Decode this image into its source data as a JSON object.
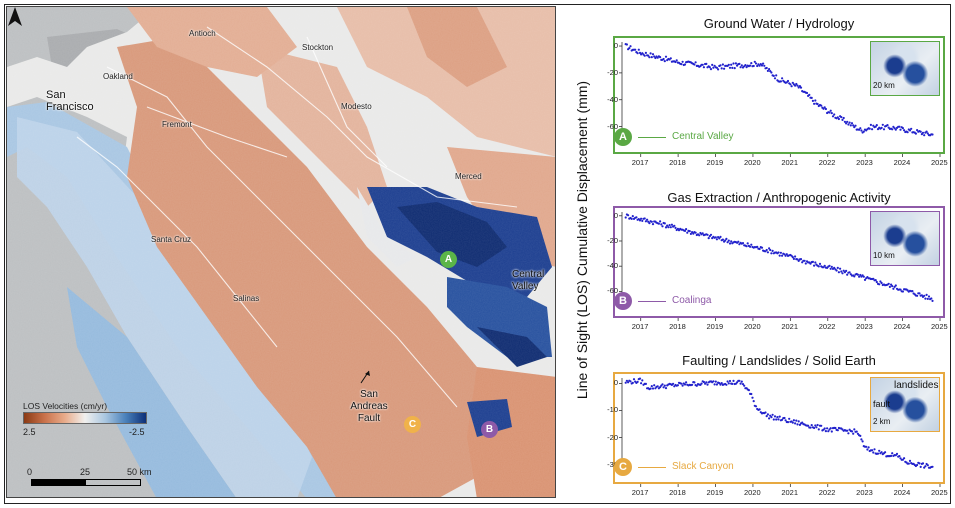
{
  "map": {
    "cities": [
      {
        "name": "Antioch",
        "cls": "city"
      },
      {
        "name": "Stockton",
        "cls": "city"
      },
      {
        "name": "Oakland",
        "cls": "city"
      },
      {
        "name": "San Francisco",
        "cls": "bigcity"
      },
      {
        "name": "Fremont",
        "cls": "city"
      },
      {
        "name": "Modesto",
        "cls": "city"
      },
      {
        "name": "Merced",
        "cls": "city"
      },
      {
        "name": "Santa Cruz",
        "cls": "city"
      },
      {
        "name": "Salinas",
        "cls": "city"
      }
    ],
    "region_label": "Central Valley",
    "fault_label": "San Andreas Fault",
    "legend": {
      "title": "LOS Velocities (cm/yr)",
      "min_label": "2.5",
      "max_label": "-2.5"
    },
    "scale": {
      "zero": "0",
      "mid": "25",
      "end": "50 km"
    },
    "markers": [
      {
        "letter": "A",
        "color": "#5bb548"
      },
      {
        "letter": "B",
        "color": "#8e5aa8"
      },
      {
        "letter": "C",
        "color": "#f0b24a"
      }
    ],
    "colors": {
      "uplift": "#d99271",
      "subsidence": "#173c8f",
      "ocean": "#bfc2c4",
      "coast": "#a9c8e3"
    }
  },
  "shared_ylabel": "Line of Sight (LOS) Cumulative Displacement (mm)",
  "chart_data": [
    {
      "type": "scatter",
      "title": "Ground Water / Hydrology",
      "site_letter": "A",
      "site_label": "Central Valley",
      "color": "#5aa844",
      "point_color": "#2222cc",
      "inset_scale": "20 km",
      "xlim": [
        2016.5,
        2025
      ],
      "ylim": [
        -70,
        3
      ],
      "xticks": [
        2017,
        2018,
        2019,
        2020,
        2021,
        2022,
        2023,
        2024,
        2025
      ],
      "yticks": [
        0,
        -20,
        -40,
        -60
      ],
      "anchors": [
        [
          2016.6,
          0
        ],
        [
          2017.0,
          -5
        ],
        [
          2018.0,
          -12
        ],
        [
          2019.0,
          -16
        ],
        [
          2019.8,
          -14
        ],
        [
          2020.2,
          -13
        ],
        [
          2020.7,
          -25
        ],
        [
          2021.2,
          -30
        ],
        [
          2021.7,
          -43
        ],
        [
          2022.2,
          -52
        ],
        [
          2022.6,
          -58
        ],
        [
          2022.9,
          -63
        ],
        [
          2023.2,
          -60
        ],
        [
          2023.8,
          -61
        ],
        [
          2024.2,
          -63
        ],
        [
          2024.8,
          -66
        ]
      ]
    },
    {
      "type": "scatter",
      "title": "Gas Extraction / Anthropogenic Activity",
      "site_letter": "B",
      "site_label": "Coalinga",
      "color": "#8e5aa8",
      "point_color": "#2222cc",
      "inset_scale": "10 km",
      "xlim": [
        2016.5,
        2025
      ],
      "ylim": [
        -70,
        3
      ],
      "xticks": [
        2017,
        2018,
        2019,
        2020,
        2021,
        2022,
        2023,
        2024,
        2025
      ],
      "yticks": [
        0,
        -20,
        -40,
        -60
      ],
      "anchors": [
        [
          2016.6,
          0
        ],
        [
          2017.5,
          -6
        ],
        [
          2018.5,
          -14
        ],
        [
          2019.5,
          -21
        ],
        [
          2020.5,
          -28
        ],
        [
          2021.5,
          -37
        ],
        [
          2022.5,
          -45
        ],
        [
          2023.5,
          -54
        ],
        [
          2024.5,
          -63
        ],
        [
          2024.8,
          -66
        ]
      ]
    },
    {
      "type": "scatter",
      "title": "Faulting / Landslides / Solid Earth",
      "site_letter": "C",
      "site_label": "Slack Canyon",
      "color": "#e7a941",
      "point_color": "#2222cc",
      "inset_scale": "2 km",
      "inset_labels": {
        "fault": "fault",
        "landslides": "landslides"
      },
      "xlim": [
        2016.5,
        2025
      ],
      "ylim": [
        -32,
        2
      ],
      "xticks": [
        2017,
        2018,
        2019,
        2020,
        2021,
        2022,
        2023,
        2024,
        2025
      ],
      "yticks": [
        0,
        -10,
        -20,
        -30
      ],
      "anchors": [
        [
          2016.6,
          0.5
        ],
        [
          2017.0,
          1
        ],
        [
          2017.2,
          -1.5
        ],
        [
          2018.0,
          -0.5
        ],
        [
          2019.0,
          0.3
        ],
        [
          2019.7,
          0.3
        ],
        [
          2019.9,
          -3
        ],
        [
          2020.1,
          -9
        ],
        [
          2020.4,
          -12
        ],
        [
          2021.0,
          -14
        ],
        [
          2021.5,
          -15.5
        ],
        [
          2022.0,
          -17
        ],
        [
          2022.5,
          -17.5
        ],
        [
          2022.8,
          -18
        ],
        [
          2023.0,
          -24
        ],
        [
          2023.5,
          -26
        ],
        [
          2023.9,
          -27
        ],
        [
          2024.1,
          -29
        ],
        [
          2024.6,
          -30.5
        ],
        [
          2024.8,
          -31
        ]
      ]
    }
  ]
}
